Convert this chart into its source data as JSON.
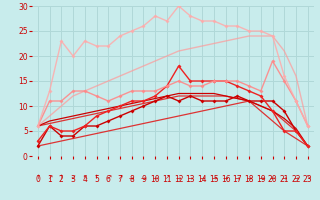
{
  "background_color": "#c8ecec",
  "grid_color": "#b0d8d8",
  "xlabel": "Vent moyen/en rafales ( km/h )",
  "xlabel_color": "#cc0000",
  "tick_color": "#cc0000",
  "tick_fontsize": 5.5,
  "label_fontsize": 7,
  "xlim": [
    -0.5,
    23.5
  ],
  "ylim": [
    0,
    30
  ],
  "yticks": [
    0,
    5,
    10,
    15,
    20,
    25,
    30
  ],
  "xticks": [
    0,
    1,
    2,
    3,
    4,
    5,
    6,
    7,
    8,
    9,
    10,
    11,
    12,
    13,
    14,
    15,
    16,
    17,
    18,
    19,
    20,
    21,
    22,
    23
  ],
  "x": [
    0,
    1,
    2,
    3,
    4,
    5,
    6,
    7,
    8,
    9,
    10,
    11,
    12,
    13,
    14,
    15,
    16,
    17,
    18,
    19,
    20,
    21,
    22,
    23
  ],
  "series": [
    {
      "name": "straight_low",
      "color": "#dd3333",
      "alpha": 1.0,
      "lw": 0.9,
      "marker": null,
      "ms": 0,
      "y": [
        2.0,
        2.5,
        3.0,
        3.5,
        4.0,
        4.5,
        5.0,
        5.5,
        6.0,
        6.5,
        7.0,
        7.5,
        8.0,
        8.5,
        9.0,
        9.5,
        10.0,
        10.5,
        11.0,
        9.0,
        7.0,
        5.0,
        3.5,
        2.0
      ]
    },
    {
      "name": "straight_mid1",
      "color": "#dd3333",
      "alpha": 1.0,
      "lw": 0.9,
      "marker": null,
      "ms": 0,
      "y": [
        6.0,
        6.5,
        7.0,
        7.5,
        8.0,
        8.5,
        9.0,
        9.5,
        10.0,
        10.5,
        11.0,
        11.5,
        12.0,
        12.0,
        12.0,
        12.0,
        12.0,
        11.5,
        11.0,
        10.0,
        9.0,
        7.0,
        5.0,
        2.0
      ]
    },
    {
      "name": "straight_mid2",
      "color": "#cc0000",
      "alpha": 1.0,
      "lw": 0.9,
      "marker": null,
      "ms": 0,
      "y": [
        6.0,
        7.0,
        7.5,
        8.0,
        8.5,
        9.0,
        9.5,
        10.0,
        10.5,
        11.0,
        11.5,
        12.0,
        12.5,
        12.5,
        12.5,
        12.5,
        12.0,
        11.5,
        11.0,
        10.0,
        9.0,
        7.5,
        5.5,
        2.0
      ]
    },
    {
      "name": "straight_high",
      "color": "#ff9999",
      "alpha": 0.7,
      "lw": 1.0,
      "marker": null,
      "ms": 0,
      "y": [
        6.0,
        8.0,
        10.0,
        12.0,
        13.0,
        14.0,
        15.0,
        16.0,
        17.0,
        18.0,
        19.0,
        20.0,
        21.0,
        21.5,
        22.0,
        22.5,
        23.0,
        23.5,
        24.0,
        24.0,
        24.0,
        21.0,
        16.0,
        6.0
      ]
    },
    {
      "name": "line_darkred_markers",
      "color": "#cc0000",
      "alpha": 1.0,
      "lw": 1.0,
      "marker": "D",
      "ms": 2.0,
      "y": [
        2,
        6,
        4,
        4,
        6,
        6,
        7,
        8,
        9,
        10,
        11,
        12,
        11,
        12,
        11,
        11,
        11,
        12,
        11,
        11,
        11,
        9,
        5,
        2
      ]
    },
    {
      "name": "line_red_markers",
      "color": "#ee2222",
      "alpha": 1.0,
      "lw": 1.0,
      "marker": "D",
      "ms": 2.0,
      "y": [
        3,
        6,
        5,
        5,
        6,
        8,
        9,
        10,
        11,
        11,
        12,
        14,
        18,
        15,
        15,
        15,
        15,
        14,
        13,
        12,
        9,
        5,
        5,
        2
      ]
    },
    {
      "name": "line_pink_low",
      "color": "#ff8888",
      "alpha": 0.9,
      "lw": 1.0,
      "marker": "D",
      "ms": 2.0,
      "y": [
        6,
        11,
        11,
        13,
        13,
        12,
        11,
        12,
        13,
        13,
        13,
        14,
        15,
        14,
        14,
        15,
        15,
        15,
        14,
        13,
        19,
        15,
        11,
        6
      ]
    },
    {
      "name": "line_pink_high",
      "color": "#ffaaaa",
      "alpha": 0.85,
      "lw": 1.0,
      "marker": "D",
      "ms": 2.0,
      "y": [
        6,
        13,
        23,
        20,
        23,
        22,
        22,
        24,
        25,
        26,
        28,
        27,
        30,
        28,
        27,
        27,
        26,
        26,
        25,
        25,
        24,
        16,
        11,
        6
      ]
    }
  ],
  "arrow_symbols": [
    "↑",
    "↗",
    "↑",
    "↙",
    "↖",
    "↑",
    "↗",
    "↗",
    "→",
    "→",
    "→",
    "↗",
    "→",
    "→",
    "→",
    "→",
    "→",
    "→",
    "→",
    "→",
    "→",
    "→",
    "→",
    "↘"
  ]
}
